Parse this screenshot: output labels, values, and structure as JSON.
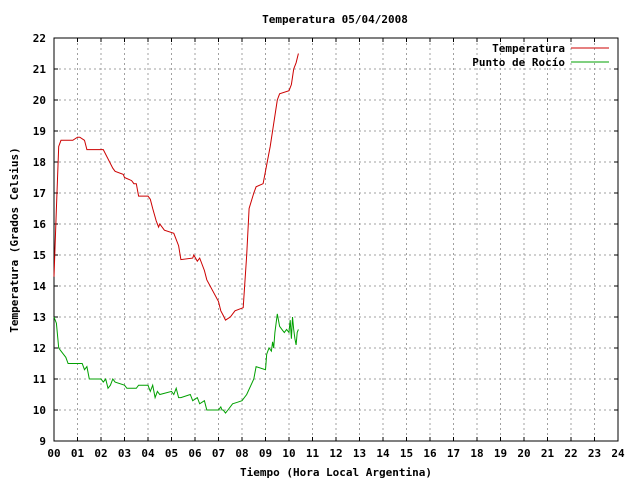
{
  "chart_data": {
    "type": "line",
    "title": "Temperatura 05/04/2008",
    "xlabel": "Tiempo (Hora Local Argentina)",
    "ylabel": "Temperatura (Grados Celsius)",
    "xlim": [
      0,
      24
    ],
    "ylim": [
      9,
      22
    ],
    "x_ticks": [
      "00",
      "01",
      "02",
      "03",
      "04",
      "05",
      "06",
      "07",
      "08",
      "09",
      "10",
      "11",
      "12",
      "13",
      "14",
      "15",
      "16",
      "17",
      "18",
      "19",
      "20",
      "21",
      "22",
      "23",
      "24"
    ],
    "y_ticks": [
      9,
      10,
      11,
      12,
      13,
      14,
      15,
      16,
      17,
      18,
      19,
      20,
      21,
      22
    ],
    "grid": true,
    "legend_position": "top-right",
    "series": [
      {
        "name": "Temperatura",
        "color": "#cc0000",
        "x": [
          0.0,
          0.1,
          0.2,
          0.3,
          0.5,
          0.8,
          1.0,
          1.1,
          1.3,
          1.4,
          2.0,
          2.1,
          2.5,
          2.6,
          2.95,
          3.0,
          3.3,
          3.4,
          3.5,
          3.6,
          4.0,
          4.1,
          4.2,
          4.35,
          4.45,
          4.5,
          4.7,
          5.1,
          5.3,
          5.4,
          5.9,
          5.95,
          6.1,
          6.2,
          6.4,
          6.5,
          7.0,
          7.1,
          7.2,
          7.3,
          7.4,
          7.5,
          7.7,
          8.05,
          8.2,
          8.3,
          8.5,
          8.6,
          8.9,
          9.2,
          9.5,
          9.6,
          10.0,
          10.1,
          10.2,
          10.3,
          10.4
        ],
        "y": [
          14.3,
          16.5,
          18.5,
          18.7,
          18.7,
          18.7,
          18.8,
          18.8,
          18.7,
          18.4,
          18.4,
          18.4,
          17.8,
          17.7,
          17.6,
          17.5,
          17.4,
          17.3,
          17.3,
          16.9,
          16.9,
          16.8,
          16.5,
          16.1,
          15.9,
          16.0,
          15.8,
          15.7,
          15.3,
          14.85,
          14.9,
          15.0,
          14.8,
          14.9,
          14.5,
          14.2,
          13.5,
          13.2,
          13.05,
          12.9,
          12.95,
          13.0,
          13.2,
          13.3,
          15.0,
          16.5,
          17.0,
          17.2,
          17.3,
          18.5,
          20.0,
          20.2,
          20.3,
          20.5,
          21.0,
          21.2,
          21.5
        ]
      },
      {
        "name": "Punto de Rocío",
        "color": "#00a000",
        "x": [
          0.0,
          0.1,
          0.2,
          0.3,
          0.4,
          0.5,
          0.6,
          1.2,
          1.3,
          1.4,
          1.5,
          2.0,
          2.1,
          2.2,
          2.3,
          2.4,
          2.5,
          2.6,
          3.0,
          3.1,
          3.5,
          3.6,
          4.0,
          4.1,
          4.2,
          4.3,
          4.4,
          4.5,
          5.0,
          5.1,
          5.2,
          5.3,
          5.4,
          5.8,
          5.9,
          6.1,
          6.2,
          6.4,
          6.5,
          7.0,
          7.1,
          7.15,
          7.2,
          7.3,
          7.4,
          7.6,
          7.8,
          8.0,
          8.2,
          8.5,
          8.6,
          9.0,
          9.05,
          9.15,
          9.25,
          9.3,
          9.35,
          9.4,
          9.5,
          9.6,
          9.7,
          9.8,
          9.9,
          10.0,
          10.05,
          10.1,
          10.15,
          10.2,
          10.25,
          10.3,
          10.35,
          10.4
        ],
        "y": [
          13.0,
          12.8,
          12.0,
          11.9,
          11.8,
          11.7,
          11.5,
          11.5,
          11.3,
          11.4,
          11.0,
          11.0,
          10.9,
          11.0,
          10.7,
          10.8,
          11.0,
          10.9,
          10.8,
          10.7,
          10.7,
          10.8,
          10.8,
          10.6,
          10.8,
          10.4,
          10.6,
          10.5,
          10.6,
          10.5,
          10.7,
          10.4,
          10.4,
          10.5,
          10.3,
          10.4,
          10.2,
          10.3,
          10.0,
          10.0,
          10.1,
          10.0,
          10.0,
          9.9,
          10.0,
          10.2,
          10.25,
          10.3,
          10.5,
          11.0,
          11.4,
          11.3,
          11.8,
          12.0,
          11.9,
          12.2,
          12.0,
          12.5,
          13.1,
          12.7,
          12.6,
          12.5,
          12.6,
          12.5,
          12.9,
          12.3,
          13.0,
          12.6,
          12.3,
          12.1,
          12.5,
          12.6
        ]
      }
    ]
  }
}
